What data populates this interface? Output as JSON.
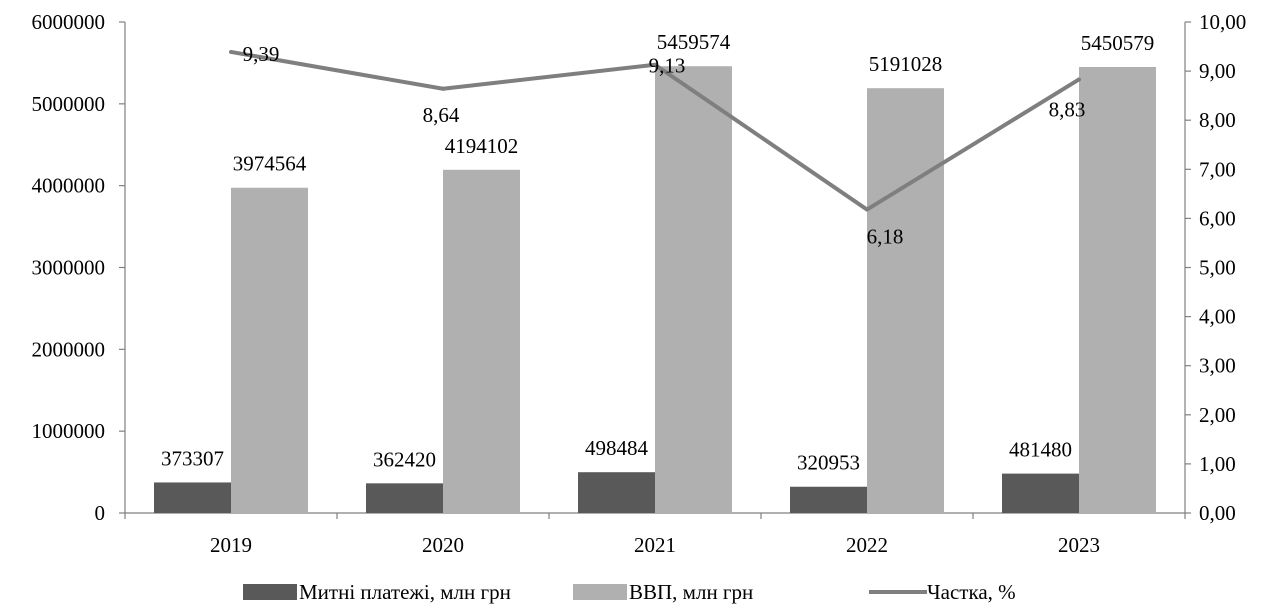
{
  "chart_data": {
    "type": "bar",
    "categories": [
      "2019",
      "2020",
      "2021",
      "2022",
      "2023"
    ],
    "series": [
      {
        "name": "Митні платежі, млн грн",
        "kind": "bar",
        "axis": "left",
        "color": "#595959",
        "values": [
          373307,
          362420,
          498484,
          320953,
          481480
        ]
      },
      {
        "name": "ВВП, млн грн",
        "kind": "bar",
        "axis": "left",
        "color": "#b0b0b0",
        "values": [
          3974564,
          4194102,
          5459574,
          5191028,
          5450579
        ]
      },
      {
        "name": "Частка, %",
        "kind": "line",
        "axis": "right",
        "color": "#7f7f7f",
        "values": [
          9.39,
          8.64,
          9.13,
          6.18,
          8.83
        ],
        "labels": [
          "9,39",
          "8,64",
          "9,13",
          "6,18",
          "8,83"
        ]
      }
    ],
    "y_left": {
      "lim": [
        0,
        6000000
      ],
      "ticks": [
        "0",
        "1000000",
        "2000000",
        "3000000",
        "4000000",
        "5000000",
        "6000000"
      ]
    },
    "y_right": {
      "lim": [
        0,
        10
      ],
      "ticks": [
        "0,00",
        "1,00",
        "2,00",
        "3,00",
        "4,00",
        "5,00",
        "6,00",
        "7,00",
        "8,00",
        "9,00",
        "10,00"
      ]
    },
    "grid": false,
    "legend": "bottom",
    "title": "",
    "xlabel": "",
    "ylabel": ""
  }
}
